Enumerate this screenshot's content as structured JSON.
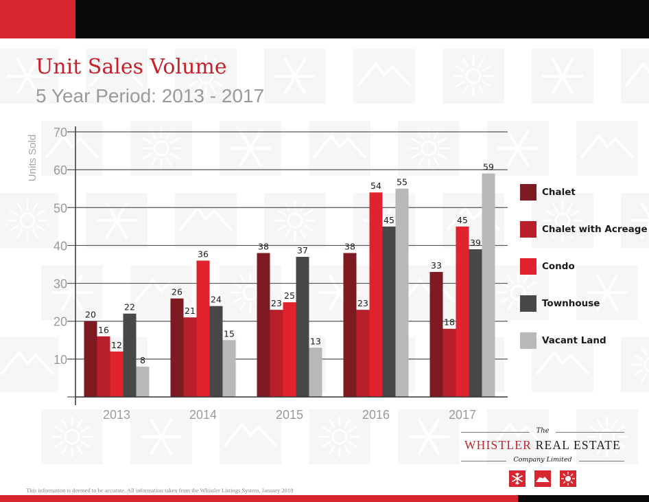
{
  "header": {
    "title": "Unit Sales Volume",
    "subtitle": "5 Year Period: 2013 - 2017"
  },
  "colors": {
    "chalet": "#7e1b22",
    "chalet_with_acreage": "#b81f2b",
    "condo": "#e0232c",
    "townhouse": "#484848",
    "vacant_land": "#b8b8b8",
    "brand_red": "#d7262f",
    "title_red": "#c8202a"
  },
  "chart_data": {
    "type": "bar",
    "title": "Unit Sales Volume",
    "subtitle": "5 Year Period: 2013 - 2017",
    "xlabel": "",
    "ylabel": "Units Sold",
    "ylim": [
      0,
      70
    ],
    "yticks": [
      10,
      20,
      30,
      40,
      50,
      60,
      70
    ],
    "grid": true,
    "legend_position": "right",
    "categories": [
      "2013",
      "2014",
      "2015",
      "2016",
      "2017"
    ],
    "series": [
      {
        "name": "Chalet",
        "color": "#7e1b22",
        "values": [
          20,
          26,
          38,
          38,
          33
        ]
      },
      {
        "name": "Chalet with Acreage",
        "color": "#b81f2b",
        "values": [
          16,
          21,
          23,
          23,
          18
        ]
      },
      {
        "name": "Condo",
        "color": "#e0232c",
        "values": [
          12,
          36,
          25,
          54,
          45
        ]
      },
      {
        "name": "Townhouse",
        "color": "#484848",
        "values": [
          22,
          24,
          37,
          45,
          39
        ]
      },
      {
        "name": "Vacant Land",
        "color": "#b8b8b8",
        "values": [
          8,
          15,
          13,
          55,
          59
        ]
      }
    ]
  },
  "logo": {
    "the": "The",
    "name_part1": "WHISTLER",
    "name_part2": "REAL ESTATE",
    "company": "Company Limited",
    "icons": [
      "snowflake-icon",
      "mountain-icon",
      "sun-icon"
    ]
  },
  "footer": {
    "disclaimer": "This information is deemed to be accurate. All information taken from the Whistler Listings System, January 2018"
  }
}
